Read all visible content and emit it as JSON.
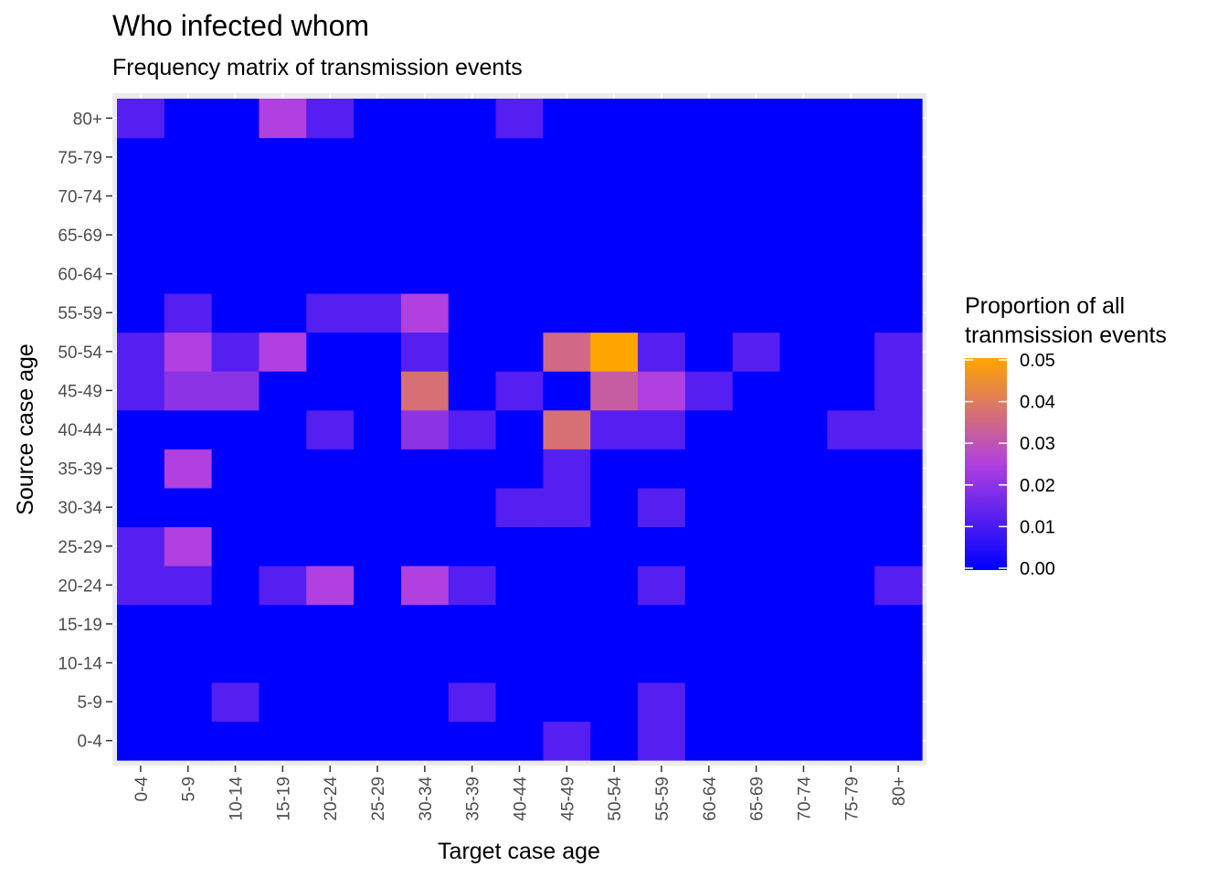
{
  "chart_data": {
    "type": "heatmap",
    "title": "Who infected whom",
    "subtitle": "Frequency matrix of transmission events",
    "xlabel": "Target case age",
    "ylabel": "Source case age",
    "x_categories": [
      "0-4",
      "5-9",
      "10-14",
      "15-19",
      "20-24",
      "25-29",
      "30-34",
      "35-39",
      "40-44",
      "45-49",
      "50-54",
      "55-59",
      "60-64",
      "65-69",
      "70-74",
      "75-79",
      "80+"
    ],
    "y_categories": [
      "0-4",
      "5-9",
      "10-14",
      "15-19",
      "20-24",
      "25-29",
      "30-34",
      "35-39",
      "40-44",
      "45-49",
      "50-54",
      "55-59",
      "60-64",
      "65-69",
      "70-74",
      "75-79",
      "80+"
    ],
    "values": [
      [
        0,
        0,
        0,
        0,
        0,
        0,
        0,
        0,
        0,
        0.012,
        0,
        0.012,
        0,
        0,
        0,
        0,
        0
      ],
      [
        0,
        0,
        0.012,
        0,
        0,
        0,
        0,
        0.012,
        0,
        0,
        0,
        0.012,
        0,
        0,
        0,
        0,
        0
      ],
      [
        0,
        0,
        0,
        0,
        0,
        0,
        0,
        0,
        0,
        0,
        0,
        0,
        0,
        0,
        0,
        0,
        0
      ],
      [
        0,
        0,
        0,
        0,
        0,
        0,
        0,
        0,
        0,
        0,
        0,
        0,
        0,
        0,
        0,
        0,
        0
      ],
      [
        0.012,
        0.012,
        0,
        0.012,
        0.025,
        0,
        0.025,
        0.012,
        0,
        0,
        0,
        0.012,
        0,
        0,
        0,
        0,
        0.012
      ],
      [
        0.012,
        0.025,
        0,
        0,
        0,
        0,
        0,
        0,
        0,
        0,
        0,
        0,
        0,
        0,
        0,
        0,
        0
      ],
      [
        0,
        0,
        0,
        0,
        0,
        0,
        0,
        0,
        0.012,
        0.012,
        0,
        0.012,
        0,
        0,
        0,
        0,
        0
      ],
      [
        0,
        0.025,
        0,
        0,
        0,
        0,
        0,
        0,
        0,
        0.012,
        0,
        0,
        0,
        0,
        0,
        0,
        0
      ],
      [
        0,
        0,
        0,
        0,
        0.012,
        0,
        0.02,
        0.012,
        0,
        0.037,
        0.012,
        0.012,
        0,
        0,
        0,
        0.012,
        0.012
      ],
      [
        0.012,
        0.02,
        0.02,
        0,
        0,
        0,
        0.037,
        0,
        0.012,
        0,
        0.032,
        0.025,
        0.012,
        0,
        0,
        0,
        0.012
      ],
      [
        0.012,
        0.025,
        0.012,
        0.025,
        0,
        0,
        0.012,
        0,
        0,
        0.035,
        0.05,
        0.012,
        0,
        0.012,
        0,
        0,
        0.012
      ],
      [
        0,
        0.012,
        0,
        0,
        0.012,
        0.012,
        0.025,
        0,
        0,
        0,
        0,
        0,
        0,
        0,
        0,
        0,
        0
      ],
      [
        0,
        0,
        0,
        0,
        0,
        0,
        0,
        0,
        0,
        0,
        0,
        0,
        0,
        0,
        0,
        0,
        0
      ],
      [
        0,
        0,
        0,
        0,
        0,
        0,
        0,
        0,
        0,
        0,
        0,
        0,
        0,
        0,
        0,
        0,
        0
      ],
      [
        0,
        0,
        0,
        0,
        0,
        0,
        0,
        0,
        0,
        0,
        0,
        0,
        0,
        0,
        0,
        0,
        0
      ],
      [
        0,
        0,
        0,
        0,
        0,
        0,
        0,
        0,
        0,
        0,
        0,
        0,
        0,
        0,
        0,
        0,
        0
      ],
      [
        0.012,
        0,
        0,
        0.025,
        0.012,
        0,
        0,
        0,
        0.012,
        0,
        0,
        0,
        0,
        0,
        0,
        0,
        0
      ]
    ],
    "color_scale": {
      "low": "#0000ff",
      "high": "#ffa500",
      "min": 0,
      "max": 0.05
    },
    "legend": {
      "title_lines": [
        "Proportion of all",
        "tranmsission events"
      ],
      "ticks": [
        0.0,
        0.01,
        0.02,
        0.03,
        0.04,
        0.05
      ],
      "tick_labels": [
        "0.00",
        "0.01",
        "0.02",
        "0.03",
        "0.04",
        "0.05"
      ],
      "placement": "right"
    },
    "grid": true
  }
}
